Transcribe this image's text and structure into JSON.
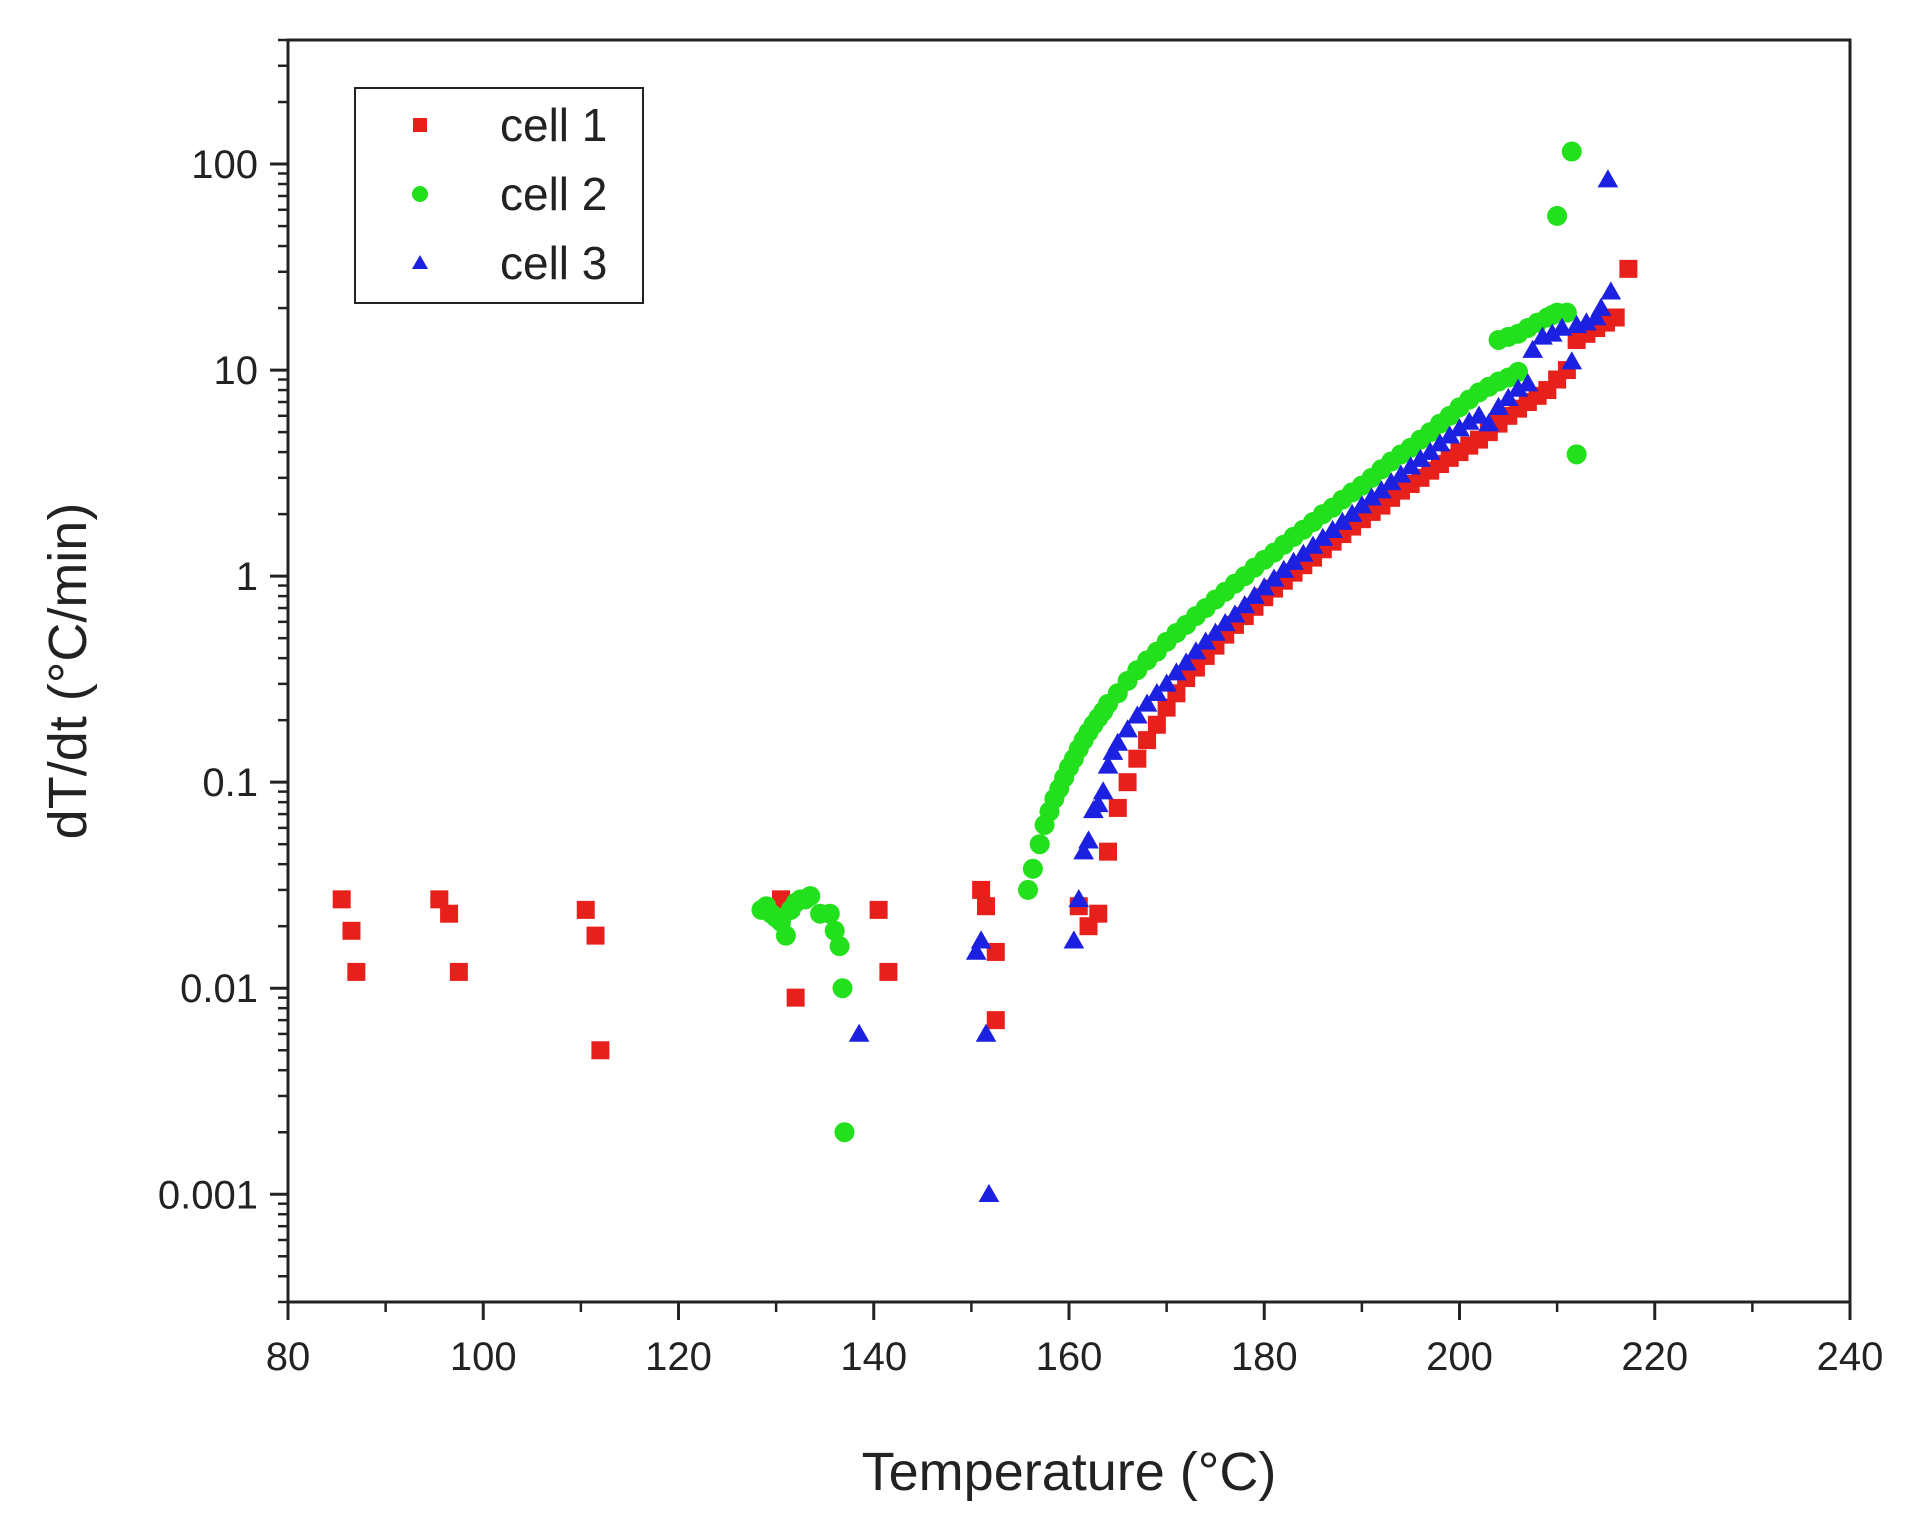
{
  "chart_data": {
    "type": "scatter",
    "title": "",
    "xlabel": "Temperature (°C)",
    "ylabel": "dT/dt (°C/min)",
    "xlim": [
      80,
      240
    ],
    "ylim": [
      0.0003,
      400
    ],
    "yscale": "log",
    "x_ticks": [
      80,
      100,
      120,
      140,
      160,
      180,
      200,
      220,
      240
    ],
    "x_tick_labels": [
      "80",
      "100",
      "120",
      "140",
      "160",
      "180",
      "200",
      "220",
      "240"
    ],
    "y_ticks": [
      0.001,
      0.01,
      0.1,
      1,
      10,
      100
    ],
    "y_tick_labels": [
      "0.001",
      "0.01",
      "0.1",
      "1",
      "10",
      "100"
    ],
    "grid": false,
    "legend_position": "top-left",
    "series": [
      {
        "name": "cell 1",
        "marker": "square",
        "color": "#e8201c",
        "points": [
          [
            85.5,
            0.027
          ],
          [
            86.5,
            0.019
          ],
          [
            87,
            0.012
          ],
          [
            95.5,
            0.027
          ],
          [
            96.5,
            0.023
          ],
          [
            97.5,
            0.012
          ],
          [
            110.5,
            0.024
          ],
          [
            111.5,
            0.018
          ],
          [
            112,
            0.005
          ],
          [
            130.5,
            0.027
          ],
          [
            131.5,
            0.025
          ],
          [
            132,
            0.009
          ],
          [
            140.5,
            0.024
          ],
          [
            141.5,
            0.012
          ],
          [
            151,
            0.03
          ],
          [
            151.5,
            0.025
          ],
          [
            152.5,
            0.015
          ],
          [
            152.5,
            0.007
          ],
          [
            161,
            0.025
          ],
          [
            162,
            0.02
          ],
          [
            163,
            0.023
          ],
          [
            164,
            0.046
          ],
          [
            165,
            0.075
          ],
          [
            166,
            0.1
          ],
          [
            167,
            0.13
          ],
          [
            168,
            0.16
          ],
          [
            169,
            0.19
          ],
          [
            170,
            0.23
          ],
          [
            171,
            0.27
          ],
          [
            172,
            0.32
          ],
          [
            173,
            0.36
          ],
          [
            174,
            0.41
          ],
          [
            175,
            0.46
          ],
          [
            176,
            0.52
          ],
          [
            177,
            0.58
          ],
          [
            178,
            0.64
          ],
          [
            179,
            0.71
          ],
          [
            180,
            0.79
          ],
          [
            181,
            0.87
          ],
          [
            182,
            0.95
          ],
          [
            183,
            1.04
          ],
          [
            184,
            1.13
          ],
          [
            185,
            1.23
          ],
          [
            186,
            1.35
          ],
          [
            187,
            1.47
          ],
          [
            188,
            1.6
          ],
          [
            189,
            1.74
          ],
          [
            190,
            1.89
          ],
          [
            191,
            2.05
          ],
          [
            192,
            2.2
          ],
          [
            193,
            2.4
          ],
          [
            194,
            2.6
          ],
          [
            195,
            2.8
          ],
          [
            196,
            3.0
          ],
          [
            197,
            3.25
          ],
          [
            198,
            3.5
          ],
          [
            199,
            3.75
          ],
          [
            200,
            4.0
          ],
          [
            201,
            4.3
          ],
          [
            202,
            4.6
          ],
          [
            203,
            5.0
          ],
          [
            204,
            5.5
          ],
          [
            205,
            6.0
          ],
          [
            206,
            6.5
          ],
          [
            207,
            7.0
          ],
          [
            208,
            7.5
          ],
          [
            209,
            8.0
          ],
          [
            210,
            9.0
          ],
          [
            211,
            10.0
          ],
          [
            212,
            14
          ],
          [
            213,
            15
          ],
          [
            214,
            16
          ],
          [
            215,
            17
          ],
          [
            216,
            18
          ],
          [
            217.3,
            31
          ]
        ]
      },
      {
        "name": "cell 2",
        "marker": "circle",
        "color": "#22e01c",
        "points": [
          [
            128.5,
            0.024
          ],
          [
            129,
            0.025
          ],
          [
            129.5,
            0.023
          ],
          [
            130,
            0.022
          ],
          [
            130.5,
            0.021
          ],
          [
            131,
            0.018
          ],
          [
            131.5,
            0.024
          ],
          [
            132,
            0.026
          ],
          [
            132.5,
            0.027
          ],
          [
            133,
            0.027
          ],
          [
            133.5,
            0.028
          ],
          [
            134.5,
            0.023
          ],
          [
            135.5,
            0.023
          ],
          [
            136,
            0.019
          ],
          [
            136.5,
            0.016
          ],
          [
            136.8,
            0.01
          ],
          [
            137,
            0.002
          ],
          [
            155.8,
            0.03
          ],
          [
            156.3,
            0.038
          ],
          [
            157,
            0.05
          ],
          [
            157.5,
            0.062
          ],
          [
            158,
            0.072
          ],
          [
            158.5,
            0.083
          ],
          [
            159,
            0.093
          ],
          [
            159.5,
            0.105
          ],
          [
            160,
            0.118
          ],
          [
            160.5,
            0.13
          ],
          [
            161,
            0.145
          ],
          [
            161.5,
            0.16
          ],
          [
            162,
            0.175
          ],
          [
            162.5,
            0.19
          ],
          [
            163,
            0.205
          ],
          [
            163.5,
            0.22
          ],
          [
            164,
            0.24
          ],
          [
            165,
            0.27
          ],
          [
            166,
            0.31
          ],
          [
            167,
            0.35
          ],
          [
            168,
            0.39
          ],
          [
            169,
            0.43
          ],
          [
            170,
            0.48
          ],
          [
            171,
            0.53
          ],
          [
            172,
            0.58
          ],
          [
            173,
            0.64
          ],
          [
            174,
            0.7
          ],
          [
            175,
            0.77
          ],
          [
            176,
            0.84
          ],
          [
            177,
            0.92
          ],
          [
            178,
            1.0
          ],
          [
            179,
            1.1
          ],
          [
            180,
            1.2
          ],
          [
            181,
            1.3
          ],
          [
            182,
            1.42
          ],
          [
            183,
            1.55
          ],
          [
            184,
            1.68
          ],
          [
            185,
            1.83
          ],
          [
            186,
            2.0
          ],
          [
            187,
            2.15
          ],
          [
            188,
            2.35
          ],
          [
            189,
            2.55
          ],
          [
            190,
            2.75
          ],
          [
            191,
            3.0
          ],
          [
            192,
            3.3
          ],
          [
            193,
            3.6
          ],
          [
            194,
            3.9
          ],
          [
            195,
            4.2
          ],
          [
            196,
            4.6
          ],
          [
            197,
            5.0
          ],
          [
            198,
            5.5
          ],
          [
            199,
            6.0
          ],
          [
            200,
            6.6
          ],
          [
            201,
            7.2
          ],
          [
            202,
            7.8
          ],
          [
            203,
            8.3
          ],
          [
            204,
            8.8
          ],
          [
            205,
            9.2
          ],
          [
            206,
            9.8
          ],
          [
            204,
            14
          ],
          [
            205,
            14.5
          ],
          [
            206,
            15
          ],
          [
            207,
            16
          ],
          [
            208,
            17
          ],
          [
            209,
            18
          ],
          [
            209.5,
            18.5
          ],
          [
            210,
            19
          ],
          [
            211,
            19
          ],
          [
            210,
            56
          ],
          [
            211.5,
            115
          ],
          [
            212,
            3.9
          ]
        ]
      },
      {
        "name": "cell 3",
        "marker": "triangle",
        "color": "#1c20e0",
        "points": [
          [
            138.5,
            0.006
          ],
          [
            150.5,
            0.015
          ],
          [
            151,
            0.017
          ],
          [
            151.5,
            0.006
          ],
          [
            151.8,
            0.001
          ],
          [
            160.5,
            0.017
          ],
          [
            161,
            0.027
          ],
          [
            161.5,
            0.046
          ],
          [
            162,
            0.052
          ],
          [
            162.5,
            0.073
          ],
          [
            163,
            0.078
          ],
          [
            163.5,
            0.09
          ],
          [
            164,
            0.12
          ],
          [
            164.5,
            0.14
          ],
          [
            165,
            0.155
          ],
          [
            166,
            0.18
          ],
          [
            167,
            0.21
          ],
          [
            168,
            0.24
          ],
          [
            169,
            0.27
          ],
          [
            170,
            0.3
          ],
          [
            171,
            0.34
          ],
          [
            172,
            0.38
          ],
          [
            173,
            0.43
          ],
          [
            174,
            0.48
          ],
          [
            175,
            0.53
          ],
          [
            176,
            0.59
          ],
          [
            177,
            0.65
          ],
          [
            178,
            0.72
          ],
          [
            179,
            0.8
          ],
          [
            180,
            0.88
          ],
          [
            181,
            0.97
          ],
          [
            182,
            1.07
          ],
          [
            183,
            1.17
          ],
          [
            184,
            1.28
          ],
          [
            185,
            1.4
          ],
          [
            186,
            1.53
          ],
          [
            187,
            1.67
          ],
          [
            188,
            1.83
          ],
          [
            189,
            2.0
          ],
          [
            190,
            2.2
          ],
          [
            191,
            2.4
          ],
          [
            192,
            2.6
          ],
          [
            193,
            2.85
          ],
          [
            194,
            3.1
          ],
          [
            195,
            3.4
          ],
          [
            196,
            3.7
          ],
          [
            197,
            4.0
          ],
          [
            198,
            4.4
          ],
          [
            199,
            4.8
          ],
          [
            200,
            5.2
          ],
          [
            201,
            5.6
          ],
          [
            202,
            6.0
          ],
          [
            203,
            5.5
          ],
          [
            204,
            6.6
          ],
          [
            205,
            7.3
          ],
          [
            206,
            8.1
          ],
          [
            207,
            8.6
          ],
          [
            207.5,
            12.5
          ],
          [
            208.5,
            14.5
          ],
          [
            209.5,
            15
          ],
          [
            210.5,
            16
          ],
          [
            211.5,
            11
          ],
          [
            212,
            16.5
          ],
          [
            213,
            17
          ],
          [
            214,
            18
          ],
          [
            214.5,
            20
          ],
          [
            215.5,
            24
          ],
          [
            215.2,
            84
          ]
        ]
      }
    ]
  }
}
